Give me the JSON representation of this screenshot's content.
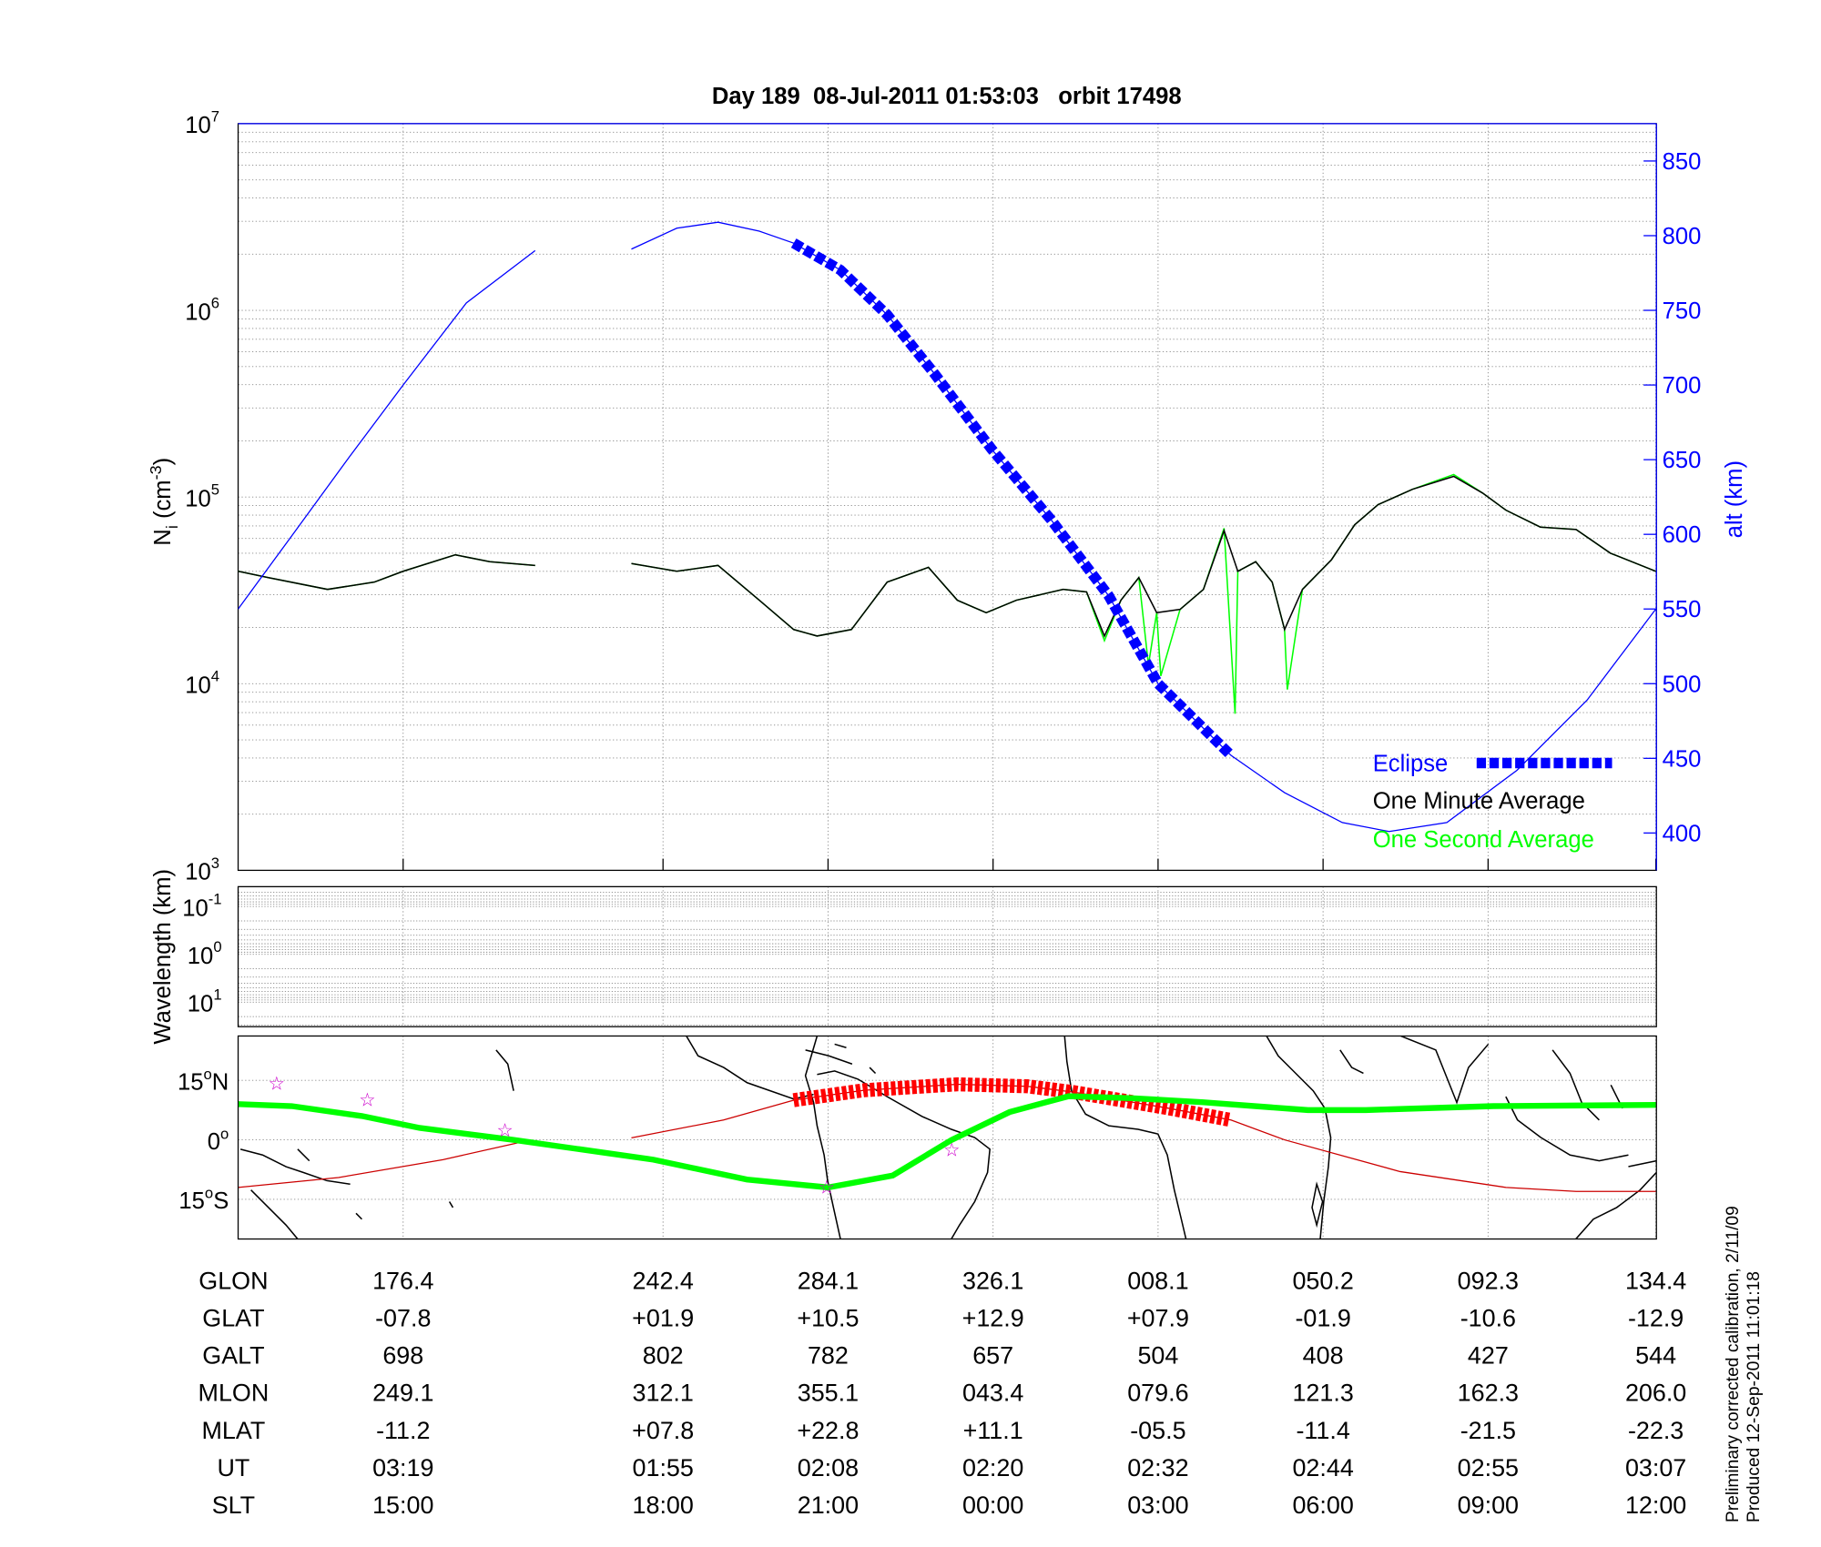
{
  "chart_data": {
    "type": "line",
    "title": "Day 189  08-Jul-2011 01:53:03   orbit 17498",
    "x_unit": "UT minutes",
    "density_panel": {
      "ylabel": "N",
      "ylabel_sub": "i",
      "ylabel_unit": " (cm",
      "ylabel_exp": "-3",
      "ylabel_close": ")",
      "yscale": "log",
      "ylim": [
        1000,
        10000000
      ],
      "yticks": [
        {
          "base": "10",
          "exp": "3"
        },
        {
          "base": "10",
          "exp": "4"
        },
        {
          "base": "10",
          "exp": "5"
        },
        {
          "base": "10",
          "exp": "6"
        },
        {
          "base": "10",
          "exp": "7"
        }
      ],
      "right_ylabel": "alt (km)",
      "right_ylim": [
        375,
        875
      ],
      "right_yticks": [
        400,
        450,
        500,
        550,
        600,
        650,
        700,
        750,
        800,
        850
      ],
      "grid": true,
      "legend_placement": "bottom-right",
      "legend": [
        {
          "label": "Eclipse",
          "color": "#0000ff"
        },
        {
          "label": "One Minute Average",
          "color": "#000000"
        },
        {
          "label": "One Second Average",
          "color": "#00ff00"
        }
      ],
      "series": [
        {
          "name": "One Second Average",
          "color": "#00ff00",
          "segments": [
            [
              [
                84.1,
                40000
              ],
              [
                86.3,
                37000
              ],
              [
                90.6,
                32000
              ],
              [
                94,
                35000
              ],
              [
                96.1,
                40000
              ],
              [
                99.9,
                49000
              ],
              [
                102.4,
                45000
              ],
              [
                105.7,
                43000
              ]
            ],
            [
              [
                112.7,
                44000
              ],
              [
                116,
                40000
              ],
              [
                119,
                43000
              ],
              [
                122,
                28000
              ],
              [
                124.5,
                19500
              ],
              [
                126.2,
                18000
              ],
              [
                128.7,
                19500
              ],
              [
                131.3,
                35000
              ],
              [
                134.3,
                42000
              ],
              [
                136.4,
                28000
              ],
              [
                138.5,
                24000
              ],
              [
                140.7,
                28000
              ],
              [
                144.1,
                32000
              ],
              [
                145.8,
                31000
              ],
              [
                147.1,
                17000
              ],
              [
                148.3,
                28000
              ],
              [
                149.6,
                37000
              ],
              [
                150.3,
                12600
              ],
              [
                150.9,
                24000
              ],
              [
                151.2,
                11000
              ],
              [
                152.6,
                25000
              ],
              [
                154.3,
                32000
              ],
              [
                155.8,
                68000
              ],
              [
                156.6,
                6900
              ],
              [
                156.8,
                40000
              ],
              [
                158.1,
                45000
              ],
              [
                159.3,
                35000
              ],
              [
                160.2,
                19500
              ],
              [
                160.4,
                9300
              ],
              [
                161.5,
                32000
              ],
              [
                163.6,
                46000
              ],
              [
                165.3,
                71000
              ],
              [
                167,
                91000
              ],
              [
                169.5,
                110000
              ],
              [
                172.5,
                132000
              ],
              [
                174.6,
                105000
              ],
              [
                176.3,
                85000
              ],
              [
                178.8,
                69000
              ],
              [
                181.4,
                67000
              ],
              [
                183.9,
                50000
              ],
              [
                187.2,
                40000
              ]
            ]
          ]
        },
        {
          "name": "One Minute Average",
          "color": "#000000",
          "segments": [
            [
              [
                84.1,
                40000
              ],
              [
                86.3,
                37000
              ],
              [
                90.6,
                32000
              ],
              [
                94,
                35000
              ],
              [
                96.1,
                40000
              ],
              [
                99.9,
                49000
              ],
              [
                102.4,
                45000
              ],
              [
                105.7,
                43000
              ]
            ],
            [
              [
                112.7,
                44000
              ],
              [
                116,
                40000
              ],
              [
                119,
                43000
              ],
              [
                122,
                28000
              ],
              [
                124.5,
                19500
              ],
              [
                126.2,
                18000
              ],
              [
                128.7,
                19500
              ],
              [
                131.3,
                35000
              ],
              [
                134.3,
                42000
              ],
              [
                136.4,
                28000
              ],
              [
                138.5,
                24000
              ],
              [
                140.7,
                28000
              ],
              [
                144.1,
                32000
              ],
              [
                145.8,
                31000
              ],
              [
                147.1,
                18000
              ],
              [
                148.3,
                28000
              ],
              [
                149.6,
                37000
              ],
              [
                150.9,
                24000
              ],
              [
                152.6,
                25000
              ],
              [
                154.3,
                32000
              ],
              [
                155.8,
                66000
              ],
              [
                156.8,
                40000
              ],
              [
                158.1,
                45000
              ],
              [
                159.3,
                35000
              ],
              [
                160.2,
                19500
              ],
              [
                161.5,
                32000
              ],
              [
                163.6,
                46000
              ],
              [
                165.3,
                71000
              ],
              [
                167,
                91000
              ],
              [
                169.5,
                110000
              ],
              [
                172.5,
                129000
              ],
              [
                174.6,
                105000
              ],
              [
                176.3,
                85000
              ],
              [
                178.8,
                69000
              ],
              [
                181.4,
                67000
              ],
              [
                183.9,
                50000
              ],
              [
                187.2,
                40000
              ]
            ]
          ]
        },
        {
          "name": "Altitude",
          "color": "#0000ff",
          "axis": "right",
          "segments": [
            [
              [
                84.1,
                550
              ],
              [
                88,
                599
              ],
              [
                92.2,
                652
              ],
              [
                96.1,
                700
              ],
              [
                100.7,
                755
              ],
              [
                105.7,
                790
              ]
            ],
            [
              [
                112.7,
                791
              ],
              [
                116,
                805
              ],
              [
                119,
                809
              ],
              [
                122,
                803
              ],
              [
                124.5,
                795
              ],
              [
                127.9,
                777
              ],
              [
                131.3,
                747
              ],
              [
                134.7,
                708
              ],
              [
                138.9,
                657
              ],
              [
                143.2,
                610
              ],
              [
                147.4,
                559
              ],
              [
                151,
                500
              ],
              [
                156.3,
                452
              ],
              [
                160.2,
                427
              ],
              [
                164.4,
                407
              ],
              [
                167.8,
                401
              ],
              [
                172,
                407
              ],
              [
                177.1,
                442
              ],
              [
                182.2,
                489
              ],
              [
                187.2,
                550
              ]
            ]
          ]
        }
      ],
      "eclipse_range": [
        124.5,
        156.3
      ]
    },
    "wavelength_panel": {
      "ylabel": "Wavelength (km)",
      "yticks": [
        {
          "base": "10",
          "exp": "-1"
        },
        {
          "base": "10",
          "exp": "0"
        },
        {
          "base": "10",
          "exp": "1"
        }
      ]
    },
    "map_panel": {
      "yticks": [
        {
          "deg": "15",
          "sym": "o",
          "hemi": "N",
          "lat": 15
        },
        {
          "deg": "0",
          "sym": "o",
          "hemi": "",
          "lat": 0
        },
        {
          "deg": "15",
          "sym": "o",
          "hemi": "S",
          "lat": -15
        }
      ],
      "ground_track": {
        "color": "#00ff00",
        "points": [
          [
            84.1,
            9
          ],
          [
            88,
            8.5
          ],
          [
            93.1,
            6
          ],
          [
            97.3,
            3
          ],
          [
            104.1,
            0
          ],
          [
            114.3,
            -5
          ],
          [
            121.1,
            -10
          ],
          [
            127,
            -12
          ],
          [
            131.7,
            -9
          ],
          [
            136,
            0
          ],
          [
            140.2,
            7
          ],
          [
            144.5,
            11
          ],
          [
            149.1,
            10.5
          ],
          [
            154.2,
            9.5
          ],
          [
            161.9,
            7.5
          ],
          [
            166.1,
            7.5
          ],
          [
            175.4,
            8.5
          ],
          [
            187.2,
            8.8
          ]
        ]
      },
      "magnetic_equator": {
        "color": "#cc0000",
        "segments": [
          [
            [
              84.1,
              -12
            ],
            [
              91.4,
              -9.5
            ],
            [
              99,
              -5
            ],
            [
              105.4,
              0
            ]
          ],
          [
            [
              112.7,
              0.5
            ],
            [
              119.4,
              5
            ],
            [
              124.5,
              10
            ],
            [
              129.6,
              12.5
            ],
            [
              136.4,
              14
            ],
            [
              141.5,
              13.5
            ],
            [
              144.9,
              12
            ],
            [
              148.3,
              10
            ],
            [
              151.7,
              8
            ],
            [
              156.3,
              5
            ],
            [
              160.2,
              0
            ],
            [
              168.6,
              -8
            ],
            [
              176.3,
              -12
            ],
            [
              181.4,
              -13
            ],
            [
              187.2,
              -13
            ]
          ]
        ]
      },
      "stars": [
        [
          86.9,
          14.4
        ],
        [
          93.5,
          10.3
        ],
        [
          103.5,
          2.6
        ],
        [
          126.9,
          -11.8
        ],
        [
          136,
          -2.4
        ]
      ]
    },
    "column_times": [
      96.1,
      115,
      127,
      139,
      151,
      163,
      175,
      187.2
    ],
    "table": [
      {
        "label": "GLON",
        "values": [
          "176.4",
          "242.4",
          "284.1",
          "326.1",
          "008.1",
          "050.2",
          "092.3",
          "134.4"
        ]
      },
      {
        "label": "GLAT",
        "values": [
          "-07.8",
          "+01.9",
          "+10.5",
          "+12.9",
          "+07.9",
          "-01.9",
          "-10.6",
          "-12.9"
        ]
      },
      {
        "label": "GALT",
        "values": [
          "698",
          "802",
          "782",
          "657",
          "504",
          "408",
          "427",
          "544"
        ]
      },
      {
        "label": "MLON",
        "values": [
          "249.1",
          "312.1",
          "355.1",
          "043.4",
          "079.6",
          "121.3",
          "162.3",
          "206.0"
        ]
      },
      {
        "label": "MLAT",
        "values": [
          "-11.2",
          "+07.8",
          "+22.8",
          "+11.1",
          "-05.5",
          "-11.4",
          "-21.5",
          "-22.3"
        ]
      },
      {
        "label": "UT",
        "values": [
          "03:19",
          "01:55",
          "02:08",
          "02:20",
          "02:32",
          "02:44",
          "02:55",
          "03:07"
        ]
      },
      {
        "label": "SLT",
        "values": [
          "15:00",
          "18:00",
          "21:00",
          "00:00",
          "03:00",
          "06:00",
          "09:00",
          "12:00"
        ]
      }
    ]
  },
  "footer": {
    "line1": "Preliminary corrected calibration, 2/11/09",
    "line2": "Produced 12-Sep-2011 11:01:18"
  }
}
